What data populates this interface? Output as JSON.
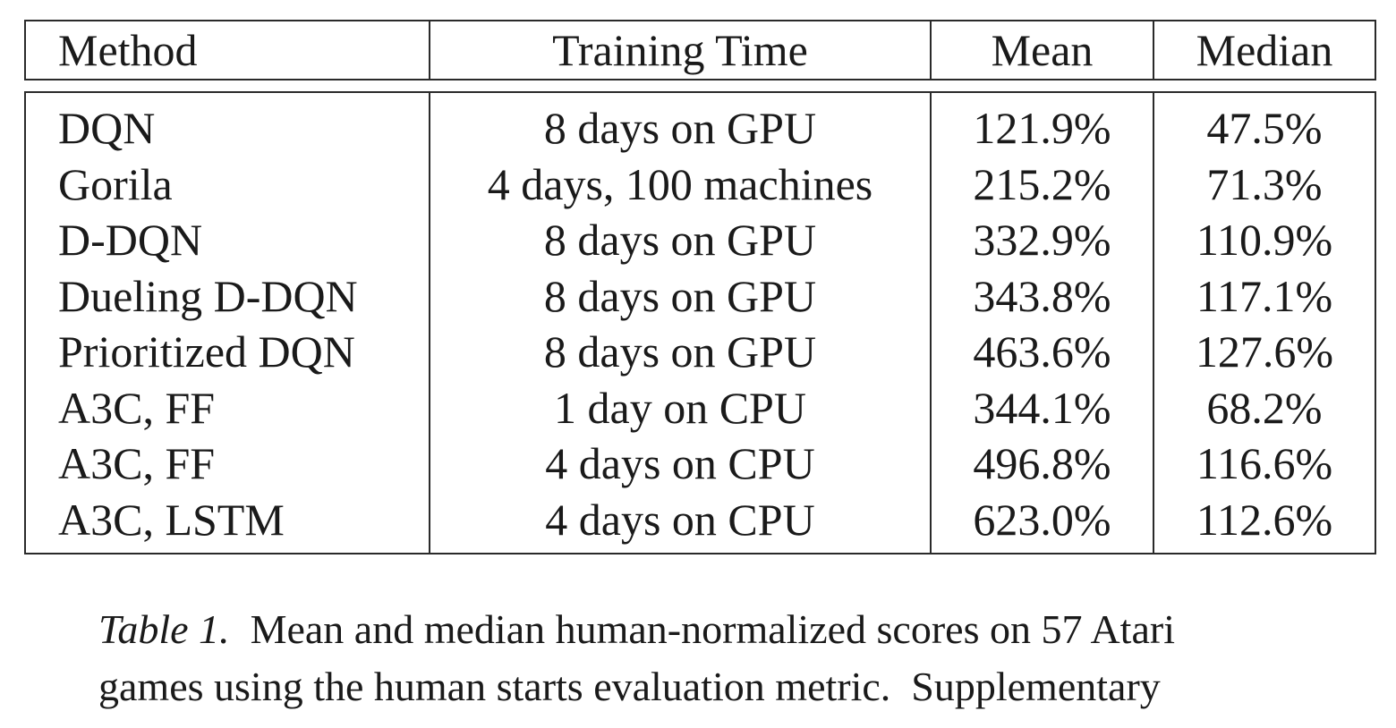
{
  "table": {
    "headers": [
      "Method",
      "Training Time",
      "Mean",
      "Median"
    ],
    "rows": [
      [
        "DQN",
        "8 days on GPU",
        "121.9%",
        "47.5%"
      ],
      [
        "Gorila",
        "4 days, 100 machines",
        "215.2%",
        "71.3%"
      ],
      [
        "D-DQN",
        "8 days on GPU",
        "332.9%",
        "110.9%"
      ],
      [
        "Dueling D-DQN",
        "8 days on GPU",
        "343.8%",
        "117.1%"
      ],
      [
        "Prioritized DQN",
        "8 days on GPU",
        "463.6%",
        "127.6%"
      ],
      [
        "A3C, FF",
        "1 day on CPU",
        "344.1%",
        "68.2%"
      ],
      [
        "A3C, FF",
        "4 days on CPU",
        "496.8%",
        "116.6%"
      ],
      [
        "A3C, LSTM",
        "4 days on CPU",
        "623.0%",
        "112.6%"
      ]
    ]
  },
  "caption": {
    "label": "Table 1.",
    "line1": "Mean and median human-normalized scores on 57 Atari",
    "line2": "games using the human starts evaluation metric.  Supplementary"
  }
}
